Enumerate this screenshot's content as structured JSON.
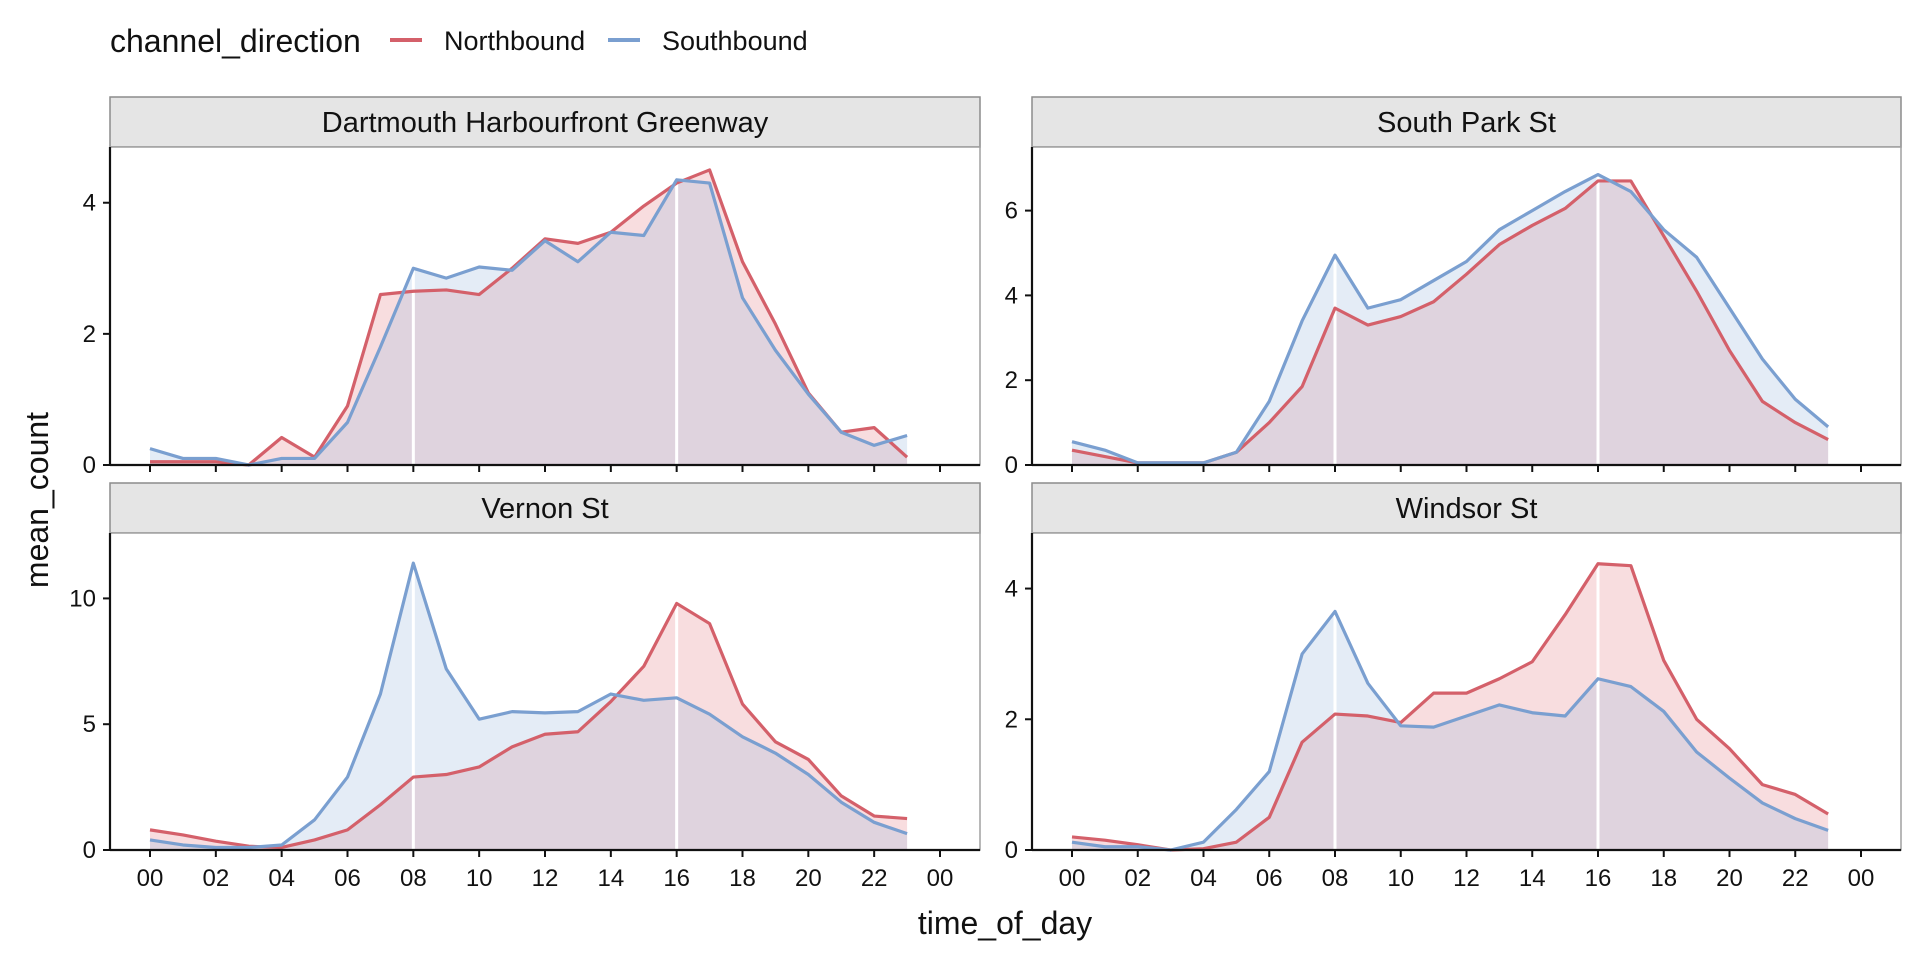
{
  "legend": {
    "title": "channel_direction",
    "entries": [
      {
        "name": "Northbound",
        "color": "#d4606a"
      },
      {
        "name": "Southbound",
        "color": "#7a9fd0"
      }
    ]
  },
  "axes": {
    "xlabel": "time_of_day",
    "ylabel": "mean_count"
  },
  "chart_data": {
    "type": "line",
    "layout": "facet_wrap 2x2",
    "x_hours": [
      0,
      1,
      2,
      3,
      4,
      5,
      6,
      7,
      8,
      9,
      10,
      11,
      12,
      13,
      14,
      15,
      16,
      17,
      18,
      19,
      20,
      21,
      22,
      23
    ],
    "x_tick_labels": [
      "00",
      "02",
      "04",
      "06",
      "08",
      "10",
      "12",
      "14",
      "16",
      "18",
      "20",
      "22",
      "00"
    ],
    "x_range_hours": [
      0,
      24
    ],
    "highlight_hours": [
      8,
      16
    ],
    "area_fill_under_lines": true,
    "grid": false,
    "legend_position": "top-left",
    "series_names": [
      "Northbound",
      "Southbound"
    ],
    "panels": [
      {
        "title": "Dartmouth Harbourfront Greenway",
        "ylim": [
          0,
          4.85
        ],
        "yticks": [
          0,
          2,
          4
        ],
        "series": [
          {
            "name": "Northbound",
            "values": [
              0.05,
              0.05,
              0.05,
              0.0,
              0.42,
              0.12,
              0.9,
              2.6,
              2.65,
              2.67,
              2.6,
              3.0,
              3.45,
              3.38,
              3.55,
              3.95,
              4.3,
              4.5,
              3.1,
              2.15,
              1.1,
              0.5,
              0.57,
              0.12
            ]
          },
          {
            "name": "Southbound",
            "values": [
              0.25,
              0.1,
              0.1,
              0.0,
              0.1,
              0.1,
              0.65,
              1.8,
              3.0,
              2.85,
              3.02,
              2.97,
              3.42,
              3.1,
              3.55,
              3.5,
              4.35,
              4.3,
              2.55,
              1.75,
              1.08,
              0.5,
              0.3,
              0.45
            ]
          }
        ]
      },
      {
        "title": "South Park St",
        "ylim": [
          0,
          7.5
        ],
        "yticks": [
          0,
          2,
          4,
          6
        ],
        "series": [
          {
            "name": "Northbound",
            "values": [
              0.35,
              0.2,
              0.05,
              0.05,
              0.05,
              0.3,
              1.0,
              1.85,
              3.7,
              3.3,
              3.5,
              3.85,
              4.5,
              5.2,
              5.65,
              6.05,
              6.7,
              6.7,
              5.4,
              4.1,
              2.7,
              1.5,
              1.0,
              0.6
            ]
          },
          {
            "name": "Southbound",
            "values": [
              0.55,
              0.35,
              0.05,
              0.05,
              0.05,
              0.3,
              1.5,
              3.4,
              4.95,
              3.7,
              3.9,
              4.35,
              4.8,
              5.55,
              6.0,
              6.45,
              6.85,
              6.45,
              5.55,
              4.9,
              3.7,
              2.5,
              1.55,
              0.9
            ]
          }
        ]
      },
      {
        "title": "Vernon St",
        "ylim": [
          0,
          12.6
        ],
        "yticks": [
          0,
          5,
          10
        ],
        "series": [
          {
            "name": "Northbound",
            "values": [
              0.8,
              0.6,
              0.35,
              0.15,
              0.1,
              0.4,
              0.8,
              1.8,
              2.9,
              3.0,
              3.3,
              4.1,
              4.6,
              4.7,
              5.9,
              7.3,
              9.8,
              9.0,
              5.8,
              4.3,
              3.6,
              2.15,
              1.35,
              1.25
            ]
          },
          {
            "name": "Southbound",
            "values": [
              0.4,
              0.2,
              0.1,
              0.1,
              0.2,
              1.2,
              2.9,
              6.2,
              11.4,
              7.2,
              5.2,
              5.5,
              5.45,
              5.5,
              6.2,
              5.95,
              6.05,
              5.4,
              4.5,
              3.85,
              3.0,
              1.9,
              1.1,
              0.65
            ]
          }
        ]
      },
      {
        "title": "Windsor St",
        "ylim": [
          0,
          4.85
        ],
        "yticks": [
          0,
          2,
          4
        ],
        "series": [
          {
            "name": "Northbound",
            "values": [
              0.2,
              0.15,
              0.08,
              0.0,
              0.02,
              0.12,
              0.5,
              1.65,
              2.08,
              2.05,
              1.95,
              2.4,
              2.4,
              2.62,
              2.88,
              3.6,
              4.38,
              4.35,
              2.9,
              2.0,
              1.55,
              1.0,
              0.85,
              0.55
            ]
          },
          {
            "name": "Southbound",
            "values": [
              0.12,
              0.05,
              0.05,
              0.0,
              0.12,
              0.62,
              1.2,
              3.0,
              3.65,
              2.55,
              1.9,
              1.88,
              2.05,
              2.22,
              2.1,
              2.05,
              2.62,
              2.5,
              2.12,
              1.5,
              1.1,
              0.72,
              0.48,
              0.3
            ]
          }
        ]
      }
    ]
  }
}
